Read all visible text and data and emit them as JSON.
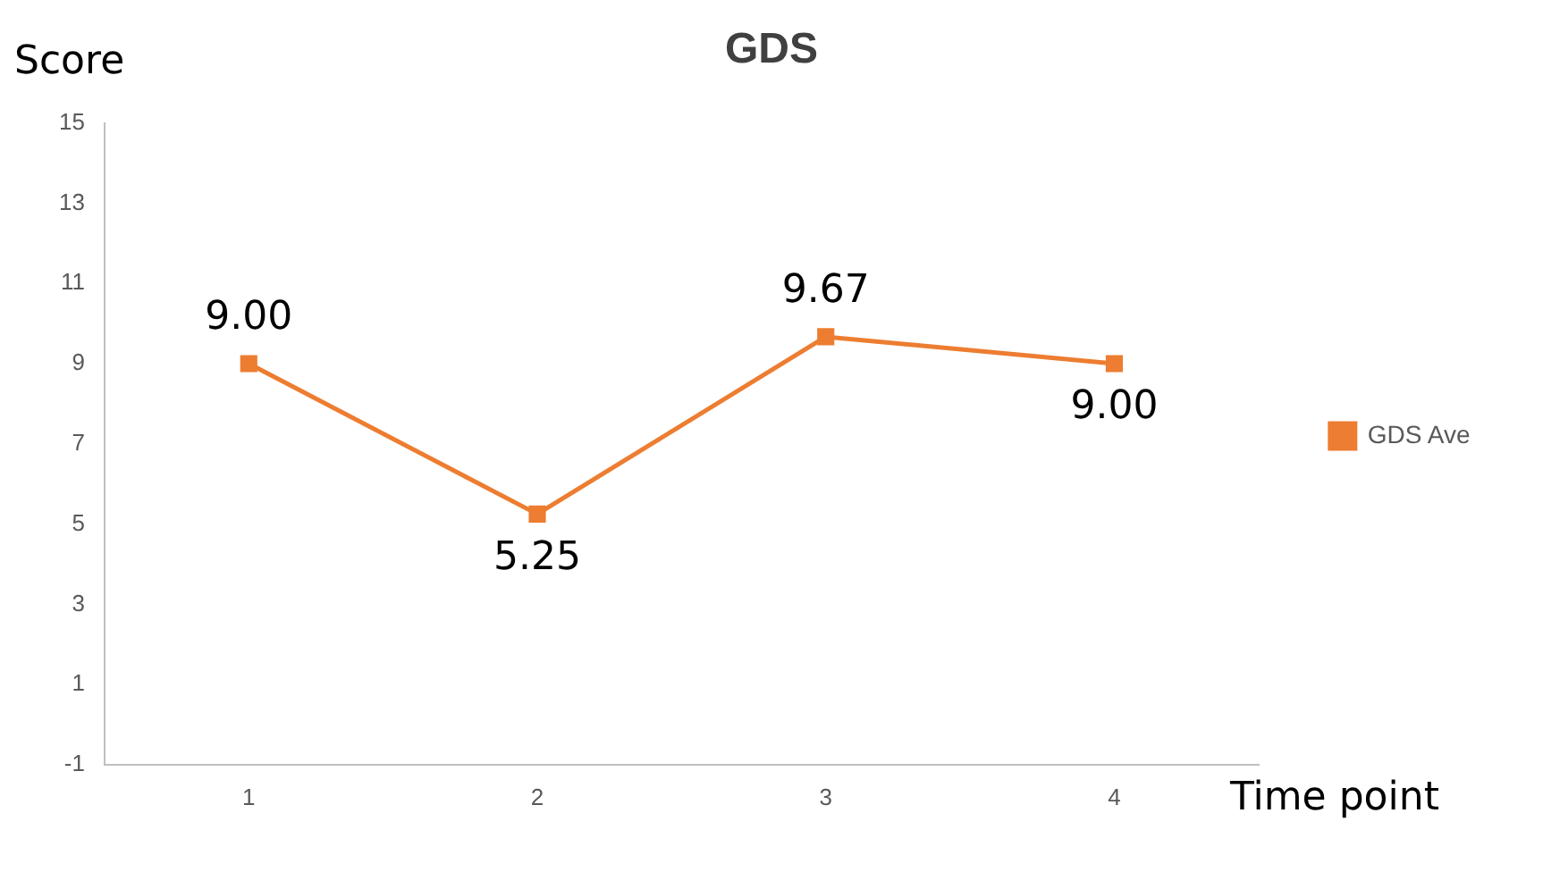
{
  "chart_data": {
    "type": "line",
    "title": "GDS",
    "xlabel": "Time point",
    "ylabel": "Score",
    "categories": [
      "1",
      "2",
      "3",
      "4"
    ],
    "series": [
      {
        "name": "GDS Ave",
        "color": "#ed7d31",
        "values": [
          9.0,
          5.25,
          9.67,
          9.0
        ]
      }
    ],
    "value_labels": [
      "9.00",
      "5.25",
      "9.67",
      "9.00"
    ],
    "ylim": [
      -1,
      15
    ],
    "yticks": [
      -1,
      1,
      3,
      5,
      7,
      9,
      11,
      13,
      15
    ],
    "grid": false,
    "legend": "right",
    "marker": "square",
    "line_style": "solid"
  }
}
